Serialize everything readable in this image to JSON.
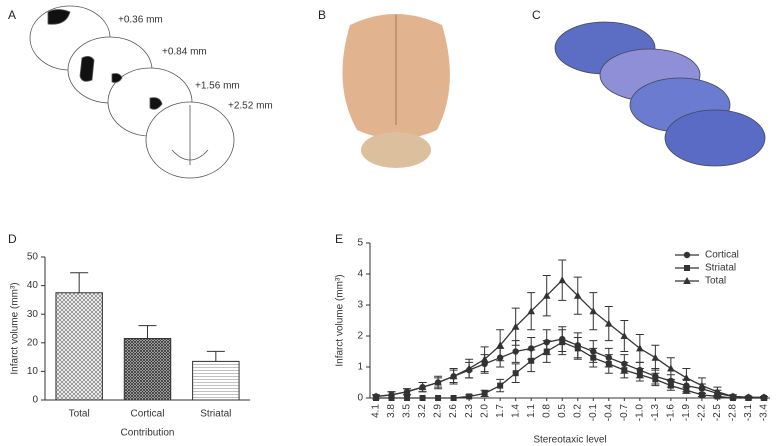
{
  "panels": {
    "a": "A",
    "b": "B",
    "c": "C",
    "d": "D",
    "e": "E"
  },
  "sections": [
    "+0.36 mm",
    "+0.84 mm",
    "+1.56 mm",
    "+2.52 mm"
  ],
  "chart_data": [
    {
      "type": "bar",
      "ylabel": "Infarct volume (mm³)",
      "xlabel": "Contribution",
      "categories": [
        "Total",
        "Cortical",
        "Striatal"
      ],
      "values": [
        37.5,
        21.5,
        13.5
      ],
      "errors": [
        7,
        4.5,
        3.5
      ],
      "ylim": [
        0,
        50
      ],
      "yticks": [
        0,
        10,
        20,
        30,
        40,
        50
      ]
    },
    {
      "type": "line",
      "ylabel": "Infarct volume (mm³)",
      "xlabel": "Stereotaxic level",
      "legend": "top-right",
      "categories": [
        "4.1",
        "3.8",
        "3.5",
        "3.2",
        "2.9",
        "2.6",
        "2.3",
        "2.0",
        "1.7",
        "1.4",
        "1.1",
        "0.8",
        "0.5",
        "0.2",
        "-0.1",
        "-0.4",
        "-0.7",
        "-1.0",
        "-1.3",
        "-1.6",
        "-1.9",
        "-2.2",
        "-2.5",
        "-2.8",
        "-3.1",
        "-3.4"
      ],
      "ylim": [
        0,
        5
      ],
      "yticks": [
        0,
        1,
        2,
        3,
        4,
        5
      ],
      "series": [
        {
          "name": "Cortical",
          "color": "#333333",
          "marker": "circle",
          "values": [
            0.05,
            0.1,
            0.2,
            0.35,
            0.5,
            0.7,
            0.9,
            1.1,
            1.3,
            1.5,
            1.6,
            1.8,
            1.9,
            1.7,
            1.5,
            1.3,
            1.1,
            0.9,
            0.7,
            0.55,
            0.4,
            0.3,
            0.15,
            0.05,
            0.02,
            0.02
          ],
          "errors": [
            0.05,
            0.1,
            0.1,
            0.15,
            0.15,
            0.2,
            0.25,
            0.3,
            0.3,
            0.35,
            0.35,
            0.4,
            0.4,
            0.4,
            0.35,
            0.3,
            0.3,
            0.25,
            0.25,
            0.2,
            0.2,
            0.15,
            0.1,
            0.05,
            0.03,
            0.03
          ]
        },
        {
          "name": "Striatal",
          "color": "#333333",
          "marker": "square",
          "values": [
            0,
            0,
            0,
            0,
            0,
            0,
            0.05,
            0.15,
            0.4,
            0.8,
            1.2,
            1.5,
            1.8,
            1.6,
            1.3,
            1.1,
            0.9,
            0.75,
            0.6,
            0.4,
            0.25,
            0.1,
            0.05,
            0,
            0,
            0
          ],
          "errors": [
            0,
            0,
            0,
            0,
            0,
            0,
            0.05,
            0.1,
            0.2,
            0.3,
            0.35,
            0.35,
            0.4,
            0.35,
            0.3,
            0.3,
            0.25,
            0.2,
            0.2,
            0.15,
            0.1,
            0.05,
            0.03,
            0,
            0,
            0
          ]
        },
        {
          "name": "Total",
          "color": "#333333",
          "marker": "triangle",
          "values": [
            0.05,
            0.1,
            0.2,
            0.35,
            0.5,
            0.7,
            0.95,
            1.25,
            1.7,
            2.3,
            2.8,
            3.3,
            3.8,
            3.3,
            2.8,
            2.4,
            2.0,
            1.6,
            1.3,
            0.95,
            0.65,
            0.4,
            0.2,
            0.05,
            0.02,
            0.02
          ],
          "errors": [
            0.05,
            0.1,
            0.1,
            0.15,
            0.2,
            0.25,
            0.3,
            0.4,
            0.5,
            0.6,
            0.6,
            0.65,
            0.65,
            0.6,
            0.6,
            0.55,
            0.5,
            0.45,
            0.4,
            0.35,
            0.3,
            0.25,
            0.15,
            0.05,
            0.03,
            0.03
          ]
        }
      ]
    }
  ]
}
